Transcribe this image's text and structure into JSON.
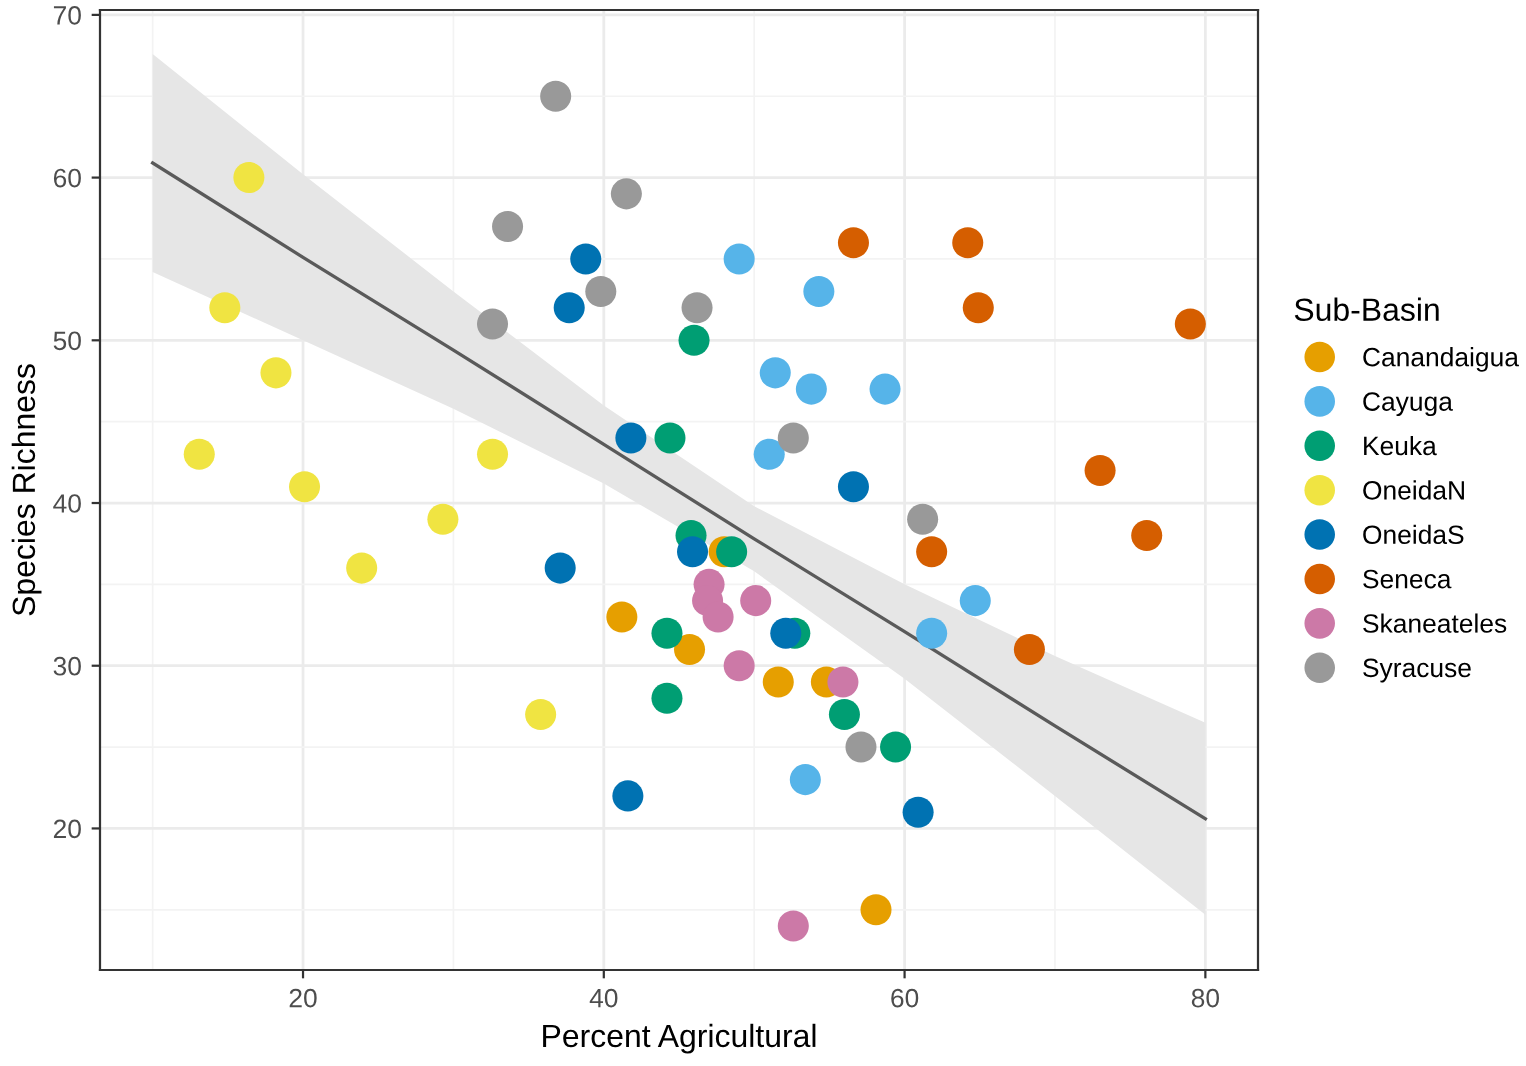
{
  "chart_data": {
    "type": "scatter",
    "xlabel": "Percent Agricultural",
    "ylabel": "Species Richness",
    "legend_title": "Sub-Basin",
    "legend": "right",
    "grid": true,
    "marker": "circle",
    "xlim": [
      6.5,
      83.5
    ],
    "xticks": [
      20,
      40,
      60,
      80
    ],
    "ylim": [
      11.3,
      70.3
    ],
    "yticks": [
      20,
      30,
      40,
      50,
      60,
      70
    ],
    "series": [
      {
        "type": "line",
        "marker": "none",
        "color": "#5a5a5a",
        "x": [
          10,
          20,
          30,
          40,
          50,
          60,
          70,
          80
        ],
        "values": [
          60.9,
          55.1,
          49.4,
          43.6,
          37.8,
          32.1,
          26.3,
          20.6
        ],
        "lower": [
          54.2,
          50.0,
          45.8,
          41.2,
          35.8,
          29.2,
          22.0,
          14.7
        ],
        "upper": [
          67.6,
          60.2,
          53.0,
          46.0,
          39.8,
          35.0,
          30.6,
          26.5
        ]
      },
      {
        "name": "Canandaigua",
        "color": "#e69f00",
        "x": [
          41.2,
          45.7,
          48.0,
          51.6,
          54.8,
          58.1
        ],
        "values": [
          33,
          31,
          37,
          29,
          29,
          15
        ]
      },
      {
        "name": "Cayuga",
        "color": "#56b4e9",
        "x": [
          49.0,
          54.3,
          51.4,
          53.8,
          58.7,
          51.0,
          64.7,
          61.8,
          53.4
        ],
        "values": [
          55,
          53,
          48,
          47,
          47,
          43,
          34,
          32,
          23
        ]
      },
      {
        "name": "Keuka",
        "color": "#009e73",
        "x": [
          46.0,
          44.4,
          45.8,
          48.5,
          52.7,
          44.2,
          44.2,
          56.0,
          59.4
        ],
        "values": [
          50,
          44,
          38,
          37,
          32,
          32,
          28,
          27,
          25
        ]
      },
      {
        "name": "OneidaN",
        "color": "#f0e442",
        "x": [
          16.4,
          14.8,
          18.2,
          13.1,
          20.1,
          32.6,
          29.3,
          23.9,
          35.8
        ],
        "values": [
          60,
          52,
          48,
          43,
          41,
          43,
          39,
          36,
          27
        ]
      },
      {
        "name": "OneidaS",
        "color": "#0072b2",
        "x": [
          38.8,
          37.7,
          41.8,
          56.6,
          37.1,
          41.6,
          45.9,
          52.1,
          60.9
        ],
        "values": [
          55,
          52,
          44,
          41,
          36,
          22,
          37,
          32,
          21
        ]
      },
      {
        "name": "Seneca",
        "color": "#d55e00",
        "x": [
          56.6,
          64.2,
          64.9,
          79.0,
          73.0,
          76.1,
          61.8,
          68.3
        ],
        "values": [
          56,
          56,
          52,
          51,
          42,
          38,
          37,
          31
        ]
      },
      {
        "name": "Skaneateles",
        "color": "#cc79a7",
        "x": [
          47.0,
          46.9,
          47.6,
          50.1,
          49.0,
          55.9,
          52.6
        ],
        "values": [
          35,
          34,
          33,
          34,
          30,
          29,
          14
        ]
      },
      {
        "name": "Syracuse",
        "color": "#999999",
        "x": [
          36.8,
          41.5,
          33.6,
          39.8,
          32.6,
          46.2,
          52.6,
          61.2,
          57.1
        ],
        "values": [
          65,
          59,
          57,
          53,
          51,
          52,
          44,
          39,
          25
        ]
      }
    ]
  }
}
